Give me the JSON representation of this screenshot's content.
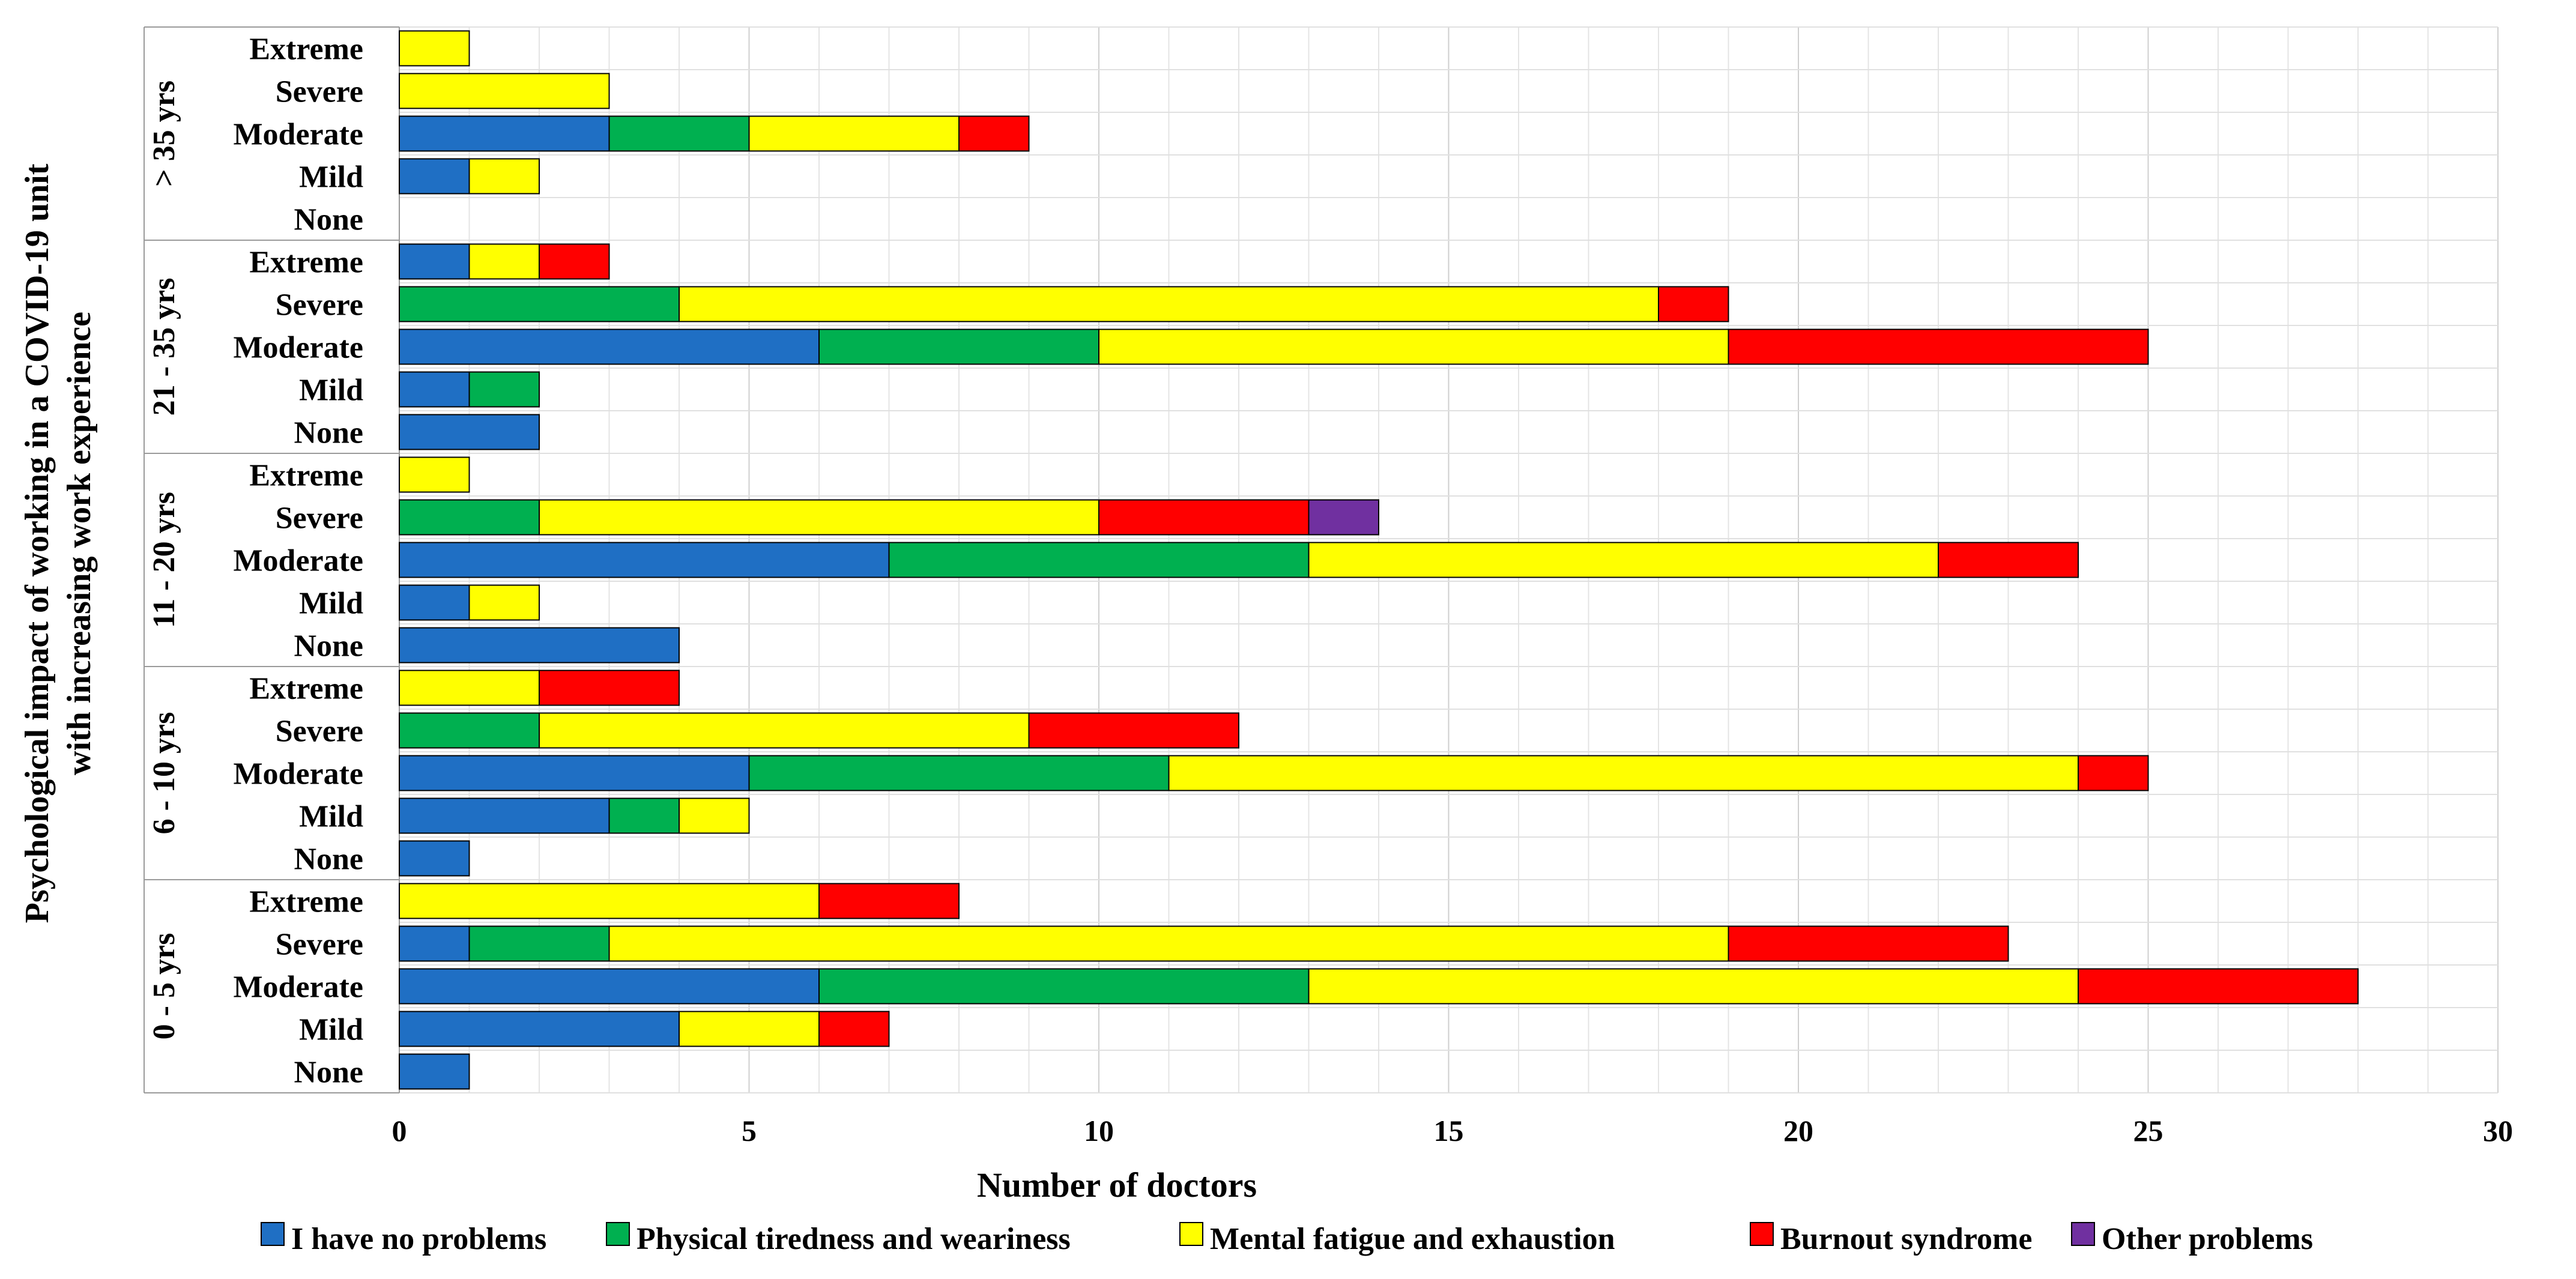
{
  "chart_data": {
    "type": "bar",
    "orientation": "horizontal",
    "stacked": true,
    "title": "",
    "xlabel": "Number of doctors",
    "ylabel_lines": [
      "Psychological impact of working in a COVID-19 unit",
      "with increasing work experience"
    ],
    "xlim": [
      0,
      30
    ],
    "xticks": [
      0,
      5,
      10,
      15,
      20,
      25,
      30
    ],
    "grid": true,
    "legend_position": "bottom",
    "series": [
      {
        "name": "I have no problems",
        "color": "#1f6fc4"
      },
      {
        "name": "Physical tiredness and weariness",
        "color": "#00b050"
      },
      {
        "name": "Mental fatigue and exhaustion",
        "color": "#ffff00"
      },
      {
        "name": "Burnout syndrome",
        "color": "#ff0000"
      },
      {
        "name": "Other problems",
        "color": "#7030a0"
      }
    ],
    "groups": [
      {
        "label": "> 35 yrs",
        "categories": [
          {
            "label": "Extreme",
            "values": [
              0,
              0,
              1,
              0,
              0
            ]
          },
          {
            "label": "Severe",
            "values": [
              0,
              0,
              3,
              0,
              0
            ]
          },
          {
            "label": "Moderate",
            "values": [
              3,
              2,
              3,
              1,
              0
            ]
          },
          {
            "label": "Mild",
            "values": [
              1,
              0,
              1,
              0,
              0
            ]
          },
          {
            "label": "None",
            "values": [
              0,
              0,
              0,
              0,
              0
            ]
          }
        ]
      },
      {
        "label": "21 - 35 yrs",
        "categories": [
          {
            "label": "Extreme",
            "values": [
              1,
              0,
              1,
              1,
              0
            ]
          },
          {
            "label": "Severe",
            "values": [
              0,
              4,
              14,
              1,
              0
            ]
          },
          {
            "label": "Moderate",
            "values": [
              6,
              4,
              9,
              6,
              0
            ]
          },
          {
            "label": "Mild",
            "values": [
              1,
              1,
              0,
              0,
              0
            ]
          },
          {
            "label": "None",
            "values": [
              2,
              0,
              0,
              0,
              0
            ]
          }
        ]
      },
      {
        "label": "11 - 20 yrs",
        "categories": [
          {
            "label": "Extreme",
            "values": [
              0,
              0,
              1,
              0,
              0
            ]
          },
          {
            "label": "Severe",
            "values": [
              0,
              2,
              8,
              3,
              1
            ]
          },
          {
            "label": "Moderate",
            "values": [
              7,
              6,
              9,
              2,
              0
            ]
          },
          {
            "label": "Mild",
            "values": [
              1,
              0,
              1,
              0,
              0
            ]
          },
          {
            "label": "None",
            "values": [
              4,
              0,
              0,
              0,
              0
            ]
          }
        ]
      },
      {
        "label": "6 - 10 yrs",
        "categories": [
          {
            "label": "Extreme",
            "values": [
              0,
              0,
              2,
              2,
              0
            ]
          },
          {
            "label": "Severe",
            "values": [
              0,
              2,
              7,
              3,
              0
            ]
          },
          {
            "label": "Moderate",
            "values": [
              5,
              6,
              13,
              1,
              0
            ]
          },
          {
            "label": "Mild",
            "values": [
              3,
              1,
              1,
              0,
              0
            ]
          },
          {
            "label": "None",
            "values": [
              1,
              0,
              0,
              0,
              0
            ]
          }
        ]
      },
      {
        "label": "0 - 5 yrs",
        "categories": [
          {
            "label": "Extreme",
            "values": [
              0,
              0,
              6,
              2,
              0
            ]
          },
          {
            "label": "Severe",
            "values": [
              1,
              2,
              16,
              4,
              0
            ]
          },
          {
            "label": "Moderate",
            "values": [
              6,
              7,
              11,
              4,
              0
            ]
          },
          {
            "label": "Mild",
            "values": [
              4,
              0,
              2,
              1,
              0
            ]
          },
          {
            "label": "None",
            "values": [
              1,
              0,
              0,
              0,
              0
            ]
          }
        ]
      }
    ]
  }
}
